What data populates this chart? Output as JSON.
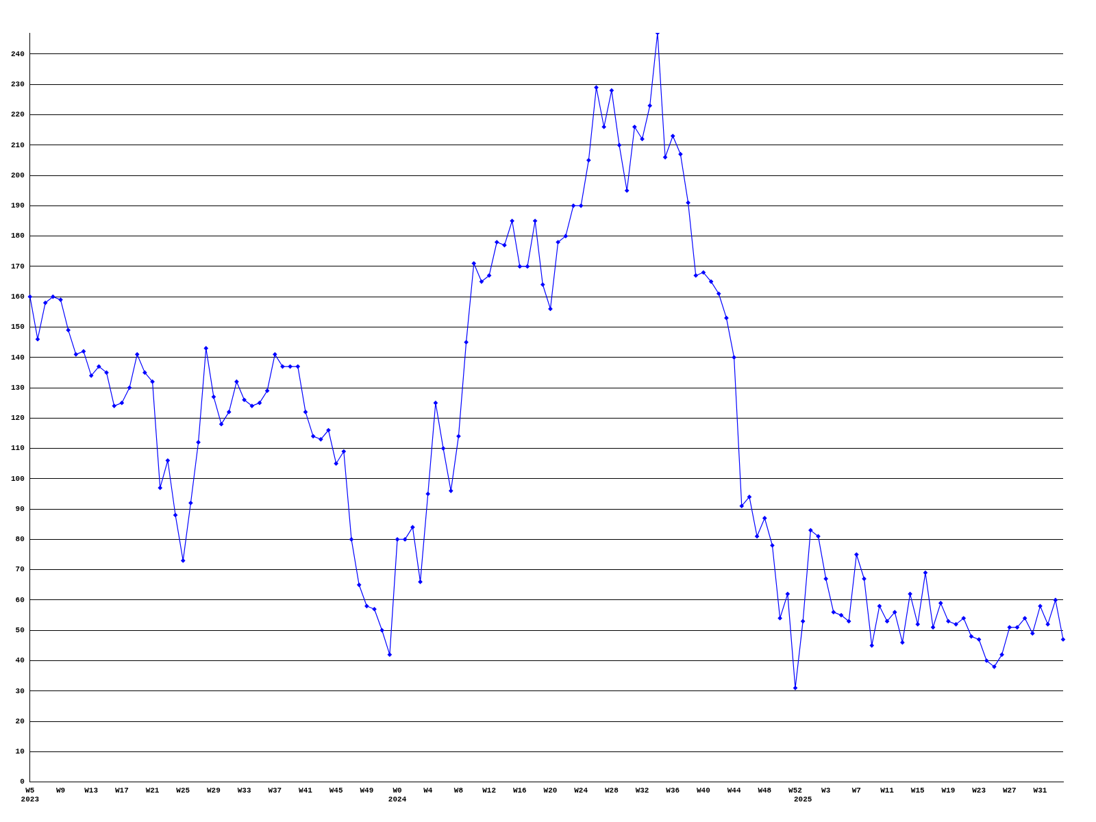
{
  "chart_data": {
    "type": "line",
    "categories": [
      "W5\n2023",
      null,
      null,
      null,
      "W9",
      null,
      null,
      null,
      "W13",
      null,
      null,
      null,
      "W17",
      null,
      null,
      null,
      "W21",
      null,
      null,
      null,
      "W25",
      null,
      null,
      null,
      "W29",
      null,
      null,
      null,
      "W33",
      null,
      null,
      null,
      "W37",
      null,
      null,
      null,
      "W41",
      null,
      null,
      null,
      "W45",
      null,
      null,
      null,
      "W49",
      null,
      null,
      null,
      "W0\n2024",
      null,
      null,
      null,
      "W4",
      null,
      null,
      null,
      "W8",
      null,
      null,
      null,
      "W12",
      null,
      null,
      null,
      "W16",
      null,
      null,
      null,
      "W20",
      null,
      null,
      null,
      "W24",
      null,
      null,
      null,
      "W28",
      null,
      null,
      null,
      "W32",
      null,
      null,
      null,
      "W36",
      null,
      null,
      null,
      "W40",
      null,
      null,
      null,
      "W44",
      null,
      null,
      null,
      "W48",
      null,
      null,
      null,
      "W52",
      "\n2025",
      null,
      null,
      "W3",
      null,
      null,
      null,
      "W7",
      null,
      null,
      null,
      "W11",
      null,
      null,
      null,
      "W15",
      null,
      null,
      null,
      "W19",
      null,
      null,
      null,
      "W23",
      null,
      null,
      null,
      "W27",
      null,
      null,
      null,
      "W31",
      null,
      null,
      null
    ],
    "series": [
      {
        "color": "#0000ff",
        "values": [
          160,
          146,
          158,
          160,
          159,
          149,
          141,
          142,
          134,
          137,
          135,
          124,
          125,
          130,
          141,
          135,
          132,
          97,
          106,
          88,
          73,
          92,
          112,
          143,
          127,
          118,
          122,
          132,
          126,
          124,
          125,
          129,
          141,
          137,
          137,
          137,
          122,
          114,
          113,
          116,
          105,
          109,
          80,
          65,
          58,
          57,
          50,
          42,
          80,
          80,
          84,
          66,
          95,
          125,
          110,
          96,
          114,
          145,
          171,
          165,
          167,
          178,
          177,
          185,
          170,
          170,
          185,
          164,
          156,
          178,
          180,
          190,
          190,
          205,
          229,
          216,
          228,
          210,
          195,
          216,
          212,
          223,
          247,
          206,
          213,
          207,
          191,
          167,
          168,
          165,
          161,
          153,
          140,
          91,
          94,
          81,
          87,
          78,
          54,
          62,
          31,
          53,
          83,
          81,
          67,
          56,
          55,
          53,
          75,
          67,
          45,
          58,
          53,
          56,
          46,
          62,
          52,
          69,
          51,
          59,
          53,
          52,
          54,
          48,
          47,
          40,
          38,
          42,
          51,
          51,
          54,
          49,
          58,
          52,
          60,
          47
        ]
      }
    ],
    "ylim": [
      0,
      247
    ],
    "yticks": [
      0,
      10,
      20,
      30,
      40,
      50,
      60,
      70,
      80,
      90,
      100,
      110,
      120,
      130,
      140,
      150,
      160,
      170,
      180,
      190,
      200,
      210,
      220,
      230,
      240
    ],
    "grid": "y",
    "legend": false,
    "marker": "diamond",
    "line_style": "solid"
  }
}
